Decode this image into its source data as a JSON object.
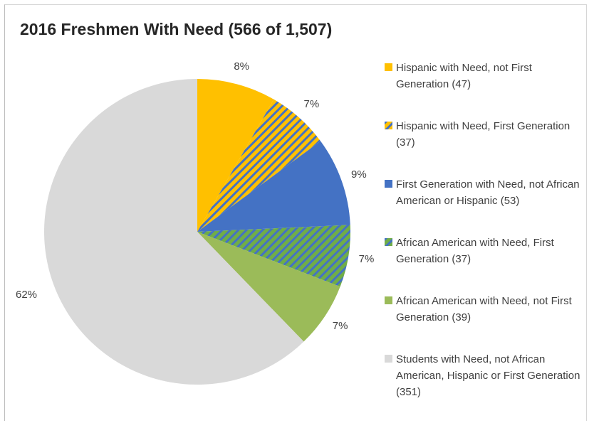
{
  "chart_data": {
    "type": "pie",
    "title": "2016 Freshmen With Need (566 of 1,507)",
    "slices": [
      {
        "label": "Hispanic with Need, not First Generation  (47)",
        "value": 47,
        "pct_label": "8%",
        "color": "#FFC000",
        "pattern": "solid"
      },
      {
        "label": "Hispanic with Need, First Generation (37)",
        "value": 37,
        "pct_label": "7%",
        "color": "#FFC000",
        "pattern": "hatch",
        "hatch_color": "#4472C4"
      },
      {
        "label": "First Generation with Need, not African American or Hispanic (53)",
        "value": 53,
        "pct_label": "9%",
        "color": "#4472C4",
        "pattern": "solid"
      },
      {
        "label": "African American with Need, First Generation (37)",
        "value": 37,
        "pct_label": "7%",
        "color": "#70AD47",
        "pattern": "hatch",
        "hatch_color": "#4472C4"
      },
      {
        "label": "African American with Need, not First Generation (39)",
        "value": 39,
        "pct_label": "7%",
        "color": "#9BBB59",
        "pattern": "solid"
      },
      {
        "label": "Students with Need, not African American, Hispanic or First Generation (351)",
        "value": 351,
        "pct_label": "62%",
        "color": "#D9D9D9",
        "pattern": "solid"
      }
    ],
    "start_angle_deg": 0,
    "direction": "clockwise",
    "legend_position": "right"
  }
}
